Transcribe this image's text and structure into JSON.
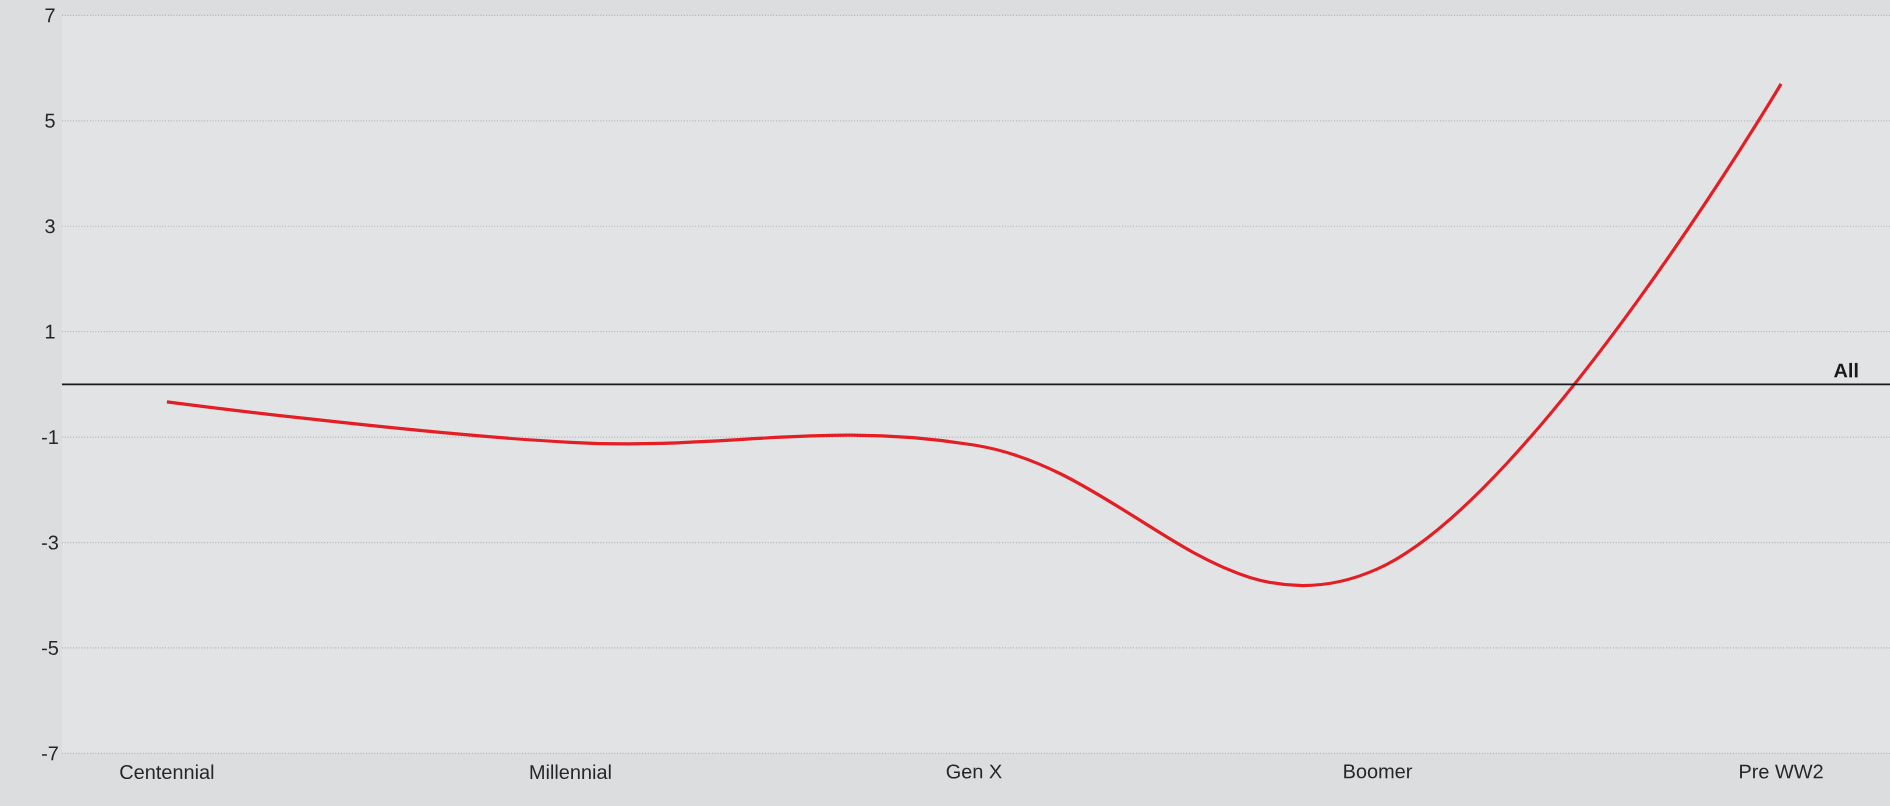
{
  "chart_data": {
    "type": "line",
    "categories": [
      "Centennial",
      "Millennial",
      "Gen X",
      "Boomer",
      "Pre WW2"
    ],
    "series": [
      {
        "color": "#e31e24",
        "values": [
          -0.33,
          -1.1,
          -1.15,
          -3.5,
          5.7
        ]
      }
    ],
    "ylim": [
      -7,
      7
    ],
    "yticks": [
      -7,
      -5,
      -3,
      -1,
      1,
      3,
      5,
      7
    ],
    "grid": "y",
    "ref_lines": [
      {
        "axis": "y",
        "value": 0,
        "label": "All",
        "color": "#1a1a1a"
      }
    ]
  }
}
